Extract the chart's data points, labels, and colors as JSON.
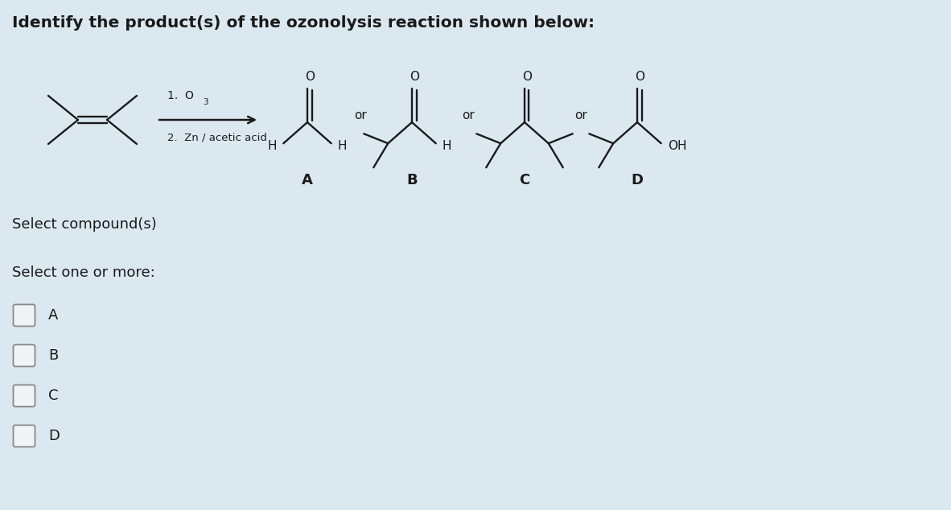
{
  "bg_color": "#dce8f0",
  "title": "Identify the product(s) of the ozonolysis reaction shown below:",
  "title_fontsize": 14.5,
  "select_compound_text": "Select compound(s)",
  "select_one_text": "Select one or more:",
  "options": [
    "A",
    "B",
    "C",
    "D"
  ],
  "text_color": "#1a1a1a",
  "checkbox_color": "#f0f4f6",
  "checkbox_edge": "#888888",
  "reaction_label1": "1.  O",
  "reaction_label1_sub": "3",
  "reaction_label2": "2.  Zn / acetic acid"
}
